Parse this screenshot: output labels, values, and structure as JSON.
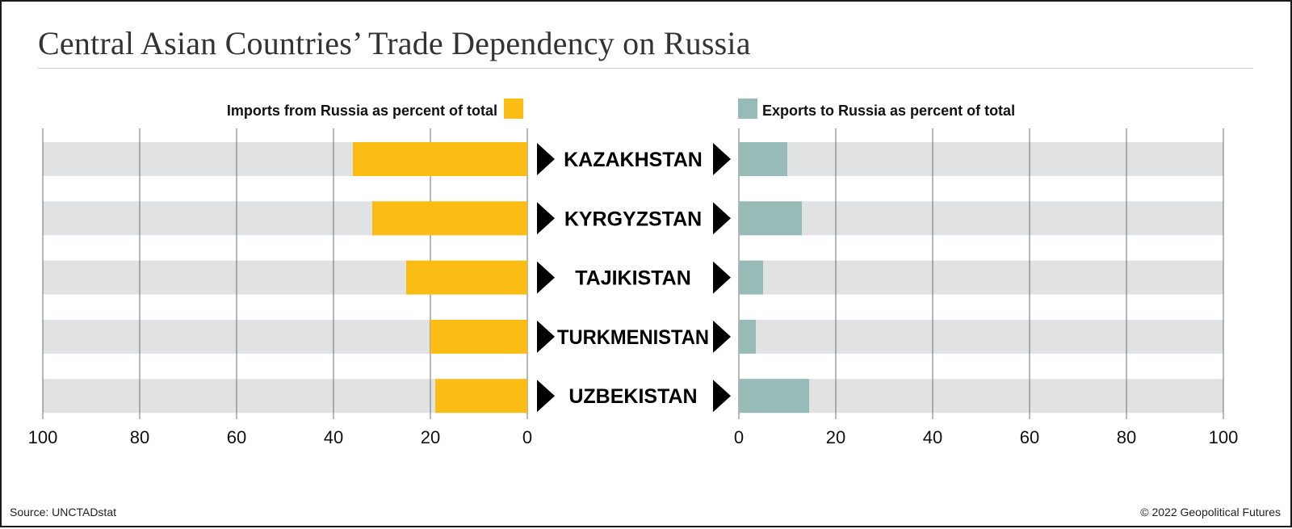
{
  "title": "Central Asian Countries’ Trade Dependency on Russia",
  "source": "Source: UNCTADstat",
  "copyright": "© 2022 Geopolitical Futures",
  "colors": {
    "imports": "#fbbd14",
    "exports": "#97bcb8",
    "track": "#e1e2e4",
    "grid": "#6f6f6f",
    "arrow": "#000000"
  },
  "chart_data": {
    "type": "bar",
    "orientation": "horizontal",
    "layout": "diverging",
    "categories": [
      "KAZAKHSTAN",
      "KYRGYZSTAN",
      "TAJIKISTAN",
      "TURKMENISTAN",
      "UZBEKISTAN"
    ],
    "series": [
      {
        "name": "Imports from Russia as percent of total",
        "side": "left",
        "values": [
          36,
          32,
          25,
          20,
          19
        ]
      },
      {
        "name": "Exports to Russia as percent of total",
        "side": "right",
        "values": [
          10,
          13,
          5,
          3.5,
          14.5
        ]
      }
    ],
    "axis_ticks": [
      "100",
      "80",
      "60",
      "40",
      "20",
      "0"
    ],
    "right_axis_ticks": [
      "0",
      "20",
      "40",
      "60",
      "80",
      "100"
    ],
    "xlim": [
      0,
      100
    ],
    "grid": true,
    "legend": "top"
  }
}
